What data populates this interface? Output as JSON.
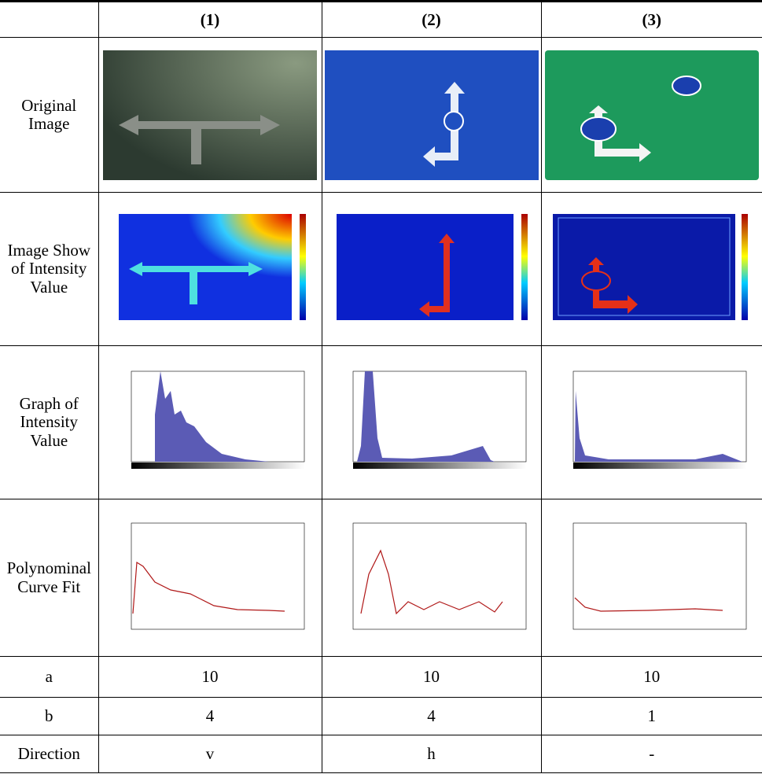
{
  "header": {
    "columns": [
      "(1)",
      "(2)",
      "(3)"
    ]
  },
  "image_rows": [
    "Original Image",
    "Image Show of Intensity Value",
    "Graph of Intensity Value",
    "Polynominal Curve Fit"
  ],
  "param_rows": [
    {
      "label": "a",
      "values": [
        10,
        10,
        10
      ]
    },
    {
      "label": "b",
      "values": [
        4,
        4,
        1
      ]
    },
    {
      "label": "Direction",
      "values": [
        "v",
        "h",
        "-"
      ]
    }
  ]
}
